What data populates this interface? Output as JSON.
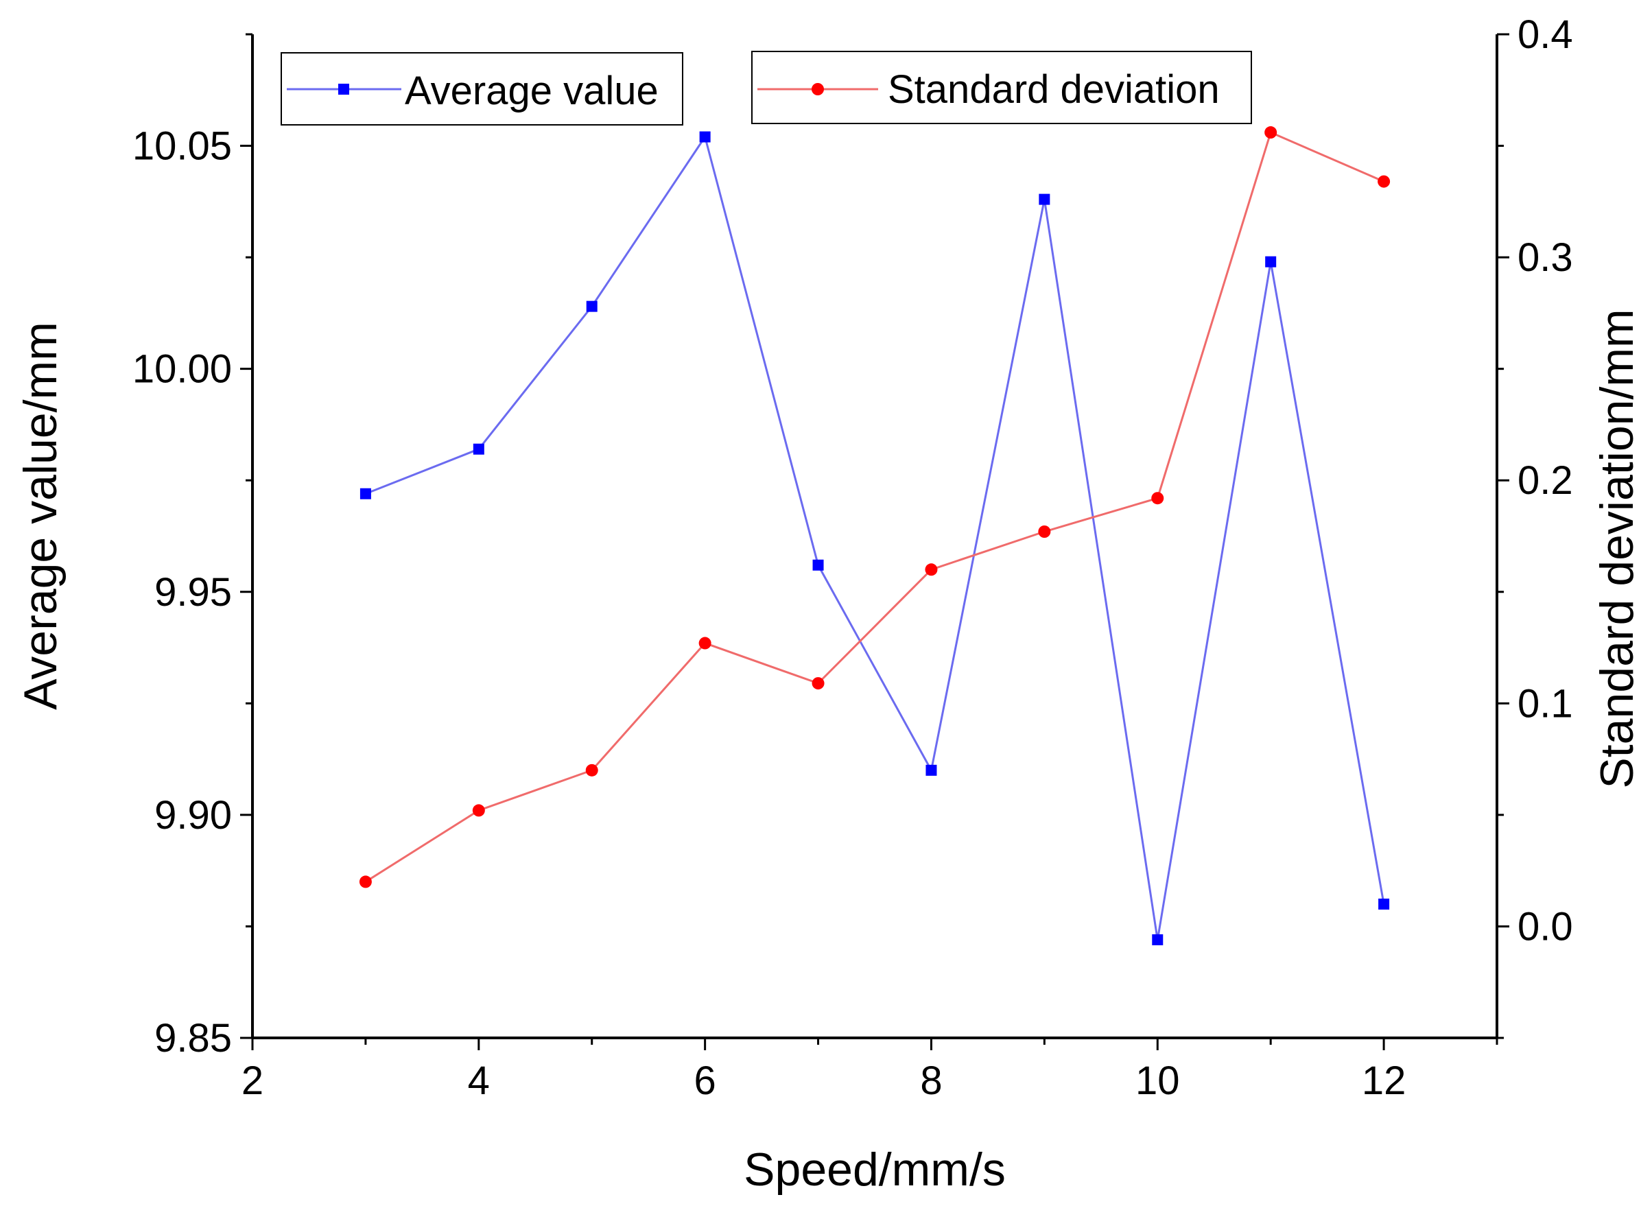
{
  "chart_data": {
    "type": "line",
    "x": [
      3,
      4,
      5,
      6,
      7,
      8,
      9,
      10,
      11,
      12
    ],
    "xlabel": "Speed/mm/s",
    "ylabel": "Average value/mm",
    "y2label": "Standard deviation/mm",
    "xlim": [
      2,
      13
    ],
    "ylim": [
      9.85,
      10.075
    ],
    "y2lim": [
      -0.05,
      0.4
    ],
    "x_ticks": [
      2,
      4,
      6,
      8,
      10,
      12
    ],
    "x_tick_labels": [
      "2",
      "4",
      "6",
      "8",
      "10",
      "12"
    ],
    "y_ticks": [
      9.85,
      9.9,
      9.95,
      10.0,
      10.05
    ],
    "y_tick_labels": [
      "9.85",
      "9.90",
      "9.95",
      "10.00",
      "10.05"
    ],
    "y2_ticks": [
      0.0,
      0.1,
      0.2,
      0.3,
      0.4
    ],
    "y2_tick_labels": [
      "0.0",
      "0.1",
      "0.2",
      "0.3",
      "0.4"
    ],
    "series": [
      {
        "name": "Average value",
        "axis": "left",
        "color": "#0000ff",
        "line_color": "#6b6bf0",
        "marker": "square",
        "values": [
          9.972,
          9.982,
          10.014,
          10.052,
          9.956,
          9.91,
          10.038,
          9.872,
          10.024,
          9.88
        ]
      },
      {
        "name": "Standard deviation",
        "axis": "right",
        "color": "#ff0000",
        "line_color": "#f06b6b",
        "marker": "circle",
        "values": [
          0.02,
          0.052,
          0.07,
          0.127,
          0.109,
          0.16,
          0.177,
          0.192,
          0.356,
          0.334
        ]
      }
    ],
    "legend": [
      {
        "label": "Average value",
        "series": 0,
        "position": "top-left"
      },
      {
        "label": "Standard deviation",
        "series": 1,
        "position": "top-center"
      }
    ]
  }
}
